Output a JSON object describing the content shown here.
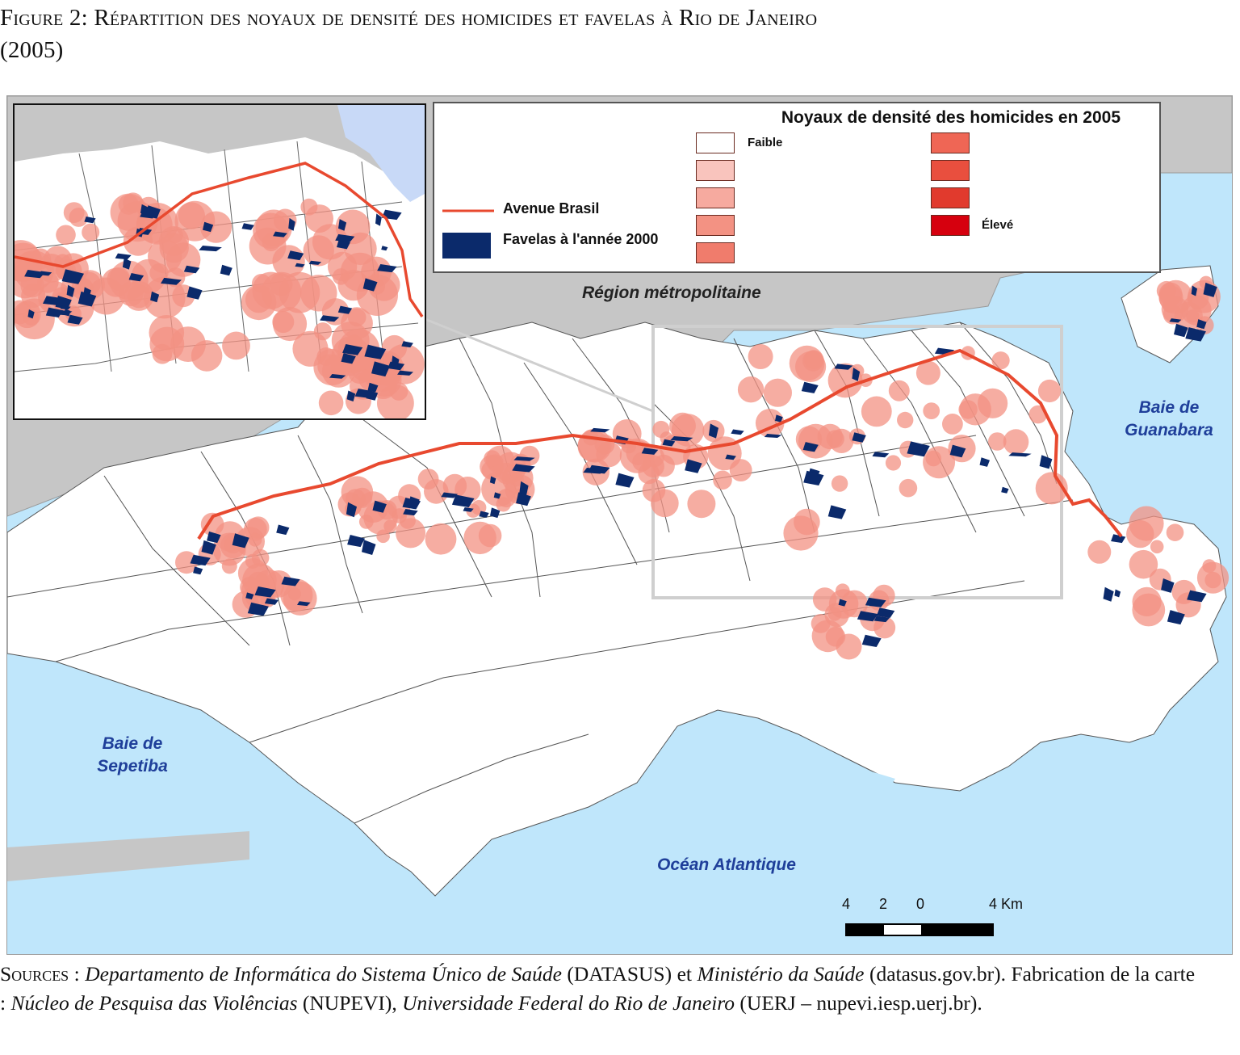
{
  "caption": {
    "figure": "Figure 2",
    "title": "Répartition des noyaux de densité des homicides et favelas à Rio de Janeiro",
    "year": "(2005)"
  },
  "legend": {
    "title": "Noyaux de densité des homicides en 2005",
    "low_label": "Faible",
    "high_label": "Élevé",
    "avenue_label": "Avenue Brasil",
    "favelas_label": "Favelas à l'année 2000",
    "density_colors": [
      "#ffffff",
      "#f9c4bd",
      "#f6aa9f",
      "#f39283",
      "#f07c6c",
      "#ef6655",
      "#e94f3e",
      "#e13a2d",
      "#d6000e"
    ],
    "avenue_color": "#e8492f",
    "favela_color": "#0b2a6b"
  },
  "map_labels": {
    "region": "Région métropolitaine",
    "guanabara_1": "Baie de",
    "guanabara_2": "Guanabara",
    "sepetiba_1": "Baie de",
    "sepetiba_2": "Sepetiba",
    "ocean": "Océan Atlantique"
  },
  "scale": {
    "labels": [
      "4",
      "2",
      "0",
      "4 Km"
    ]
  },
  "sources": {
    "prefix": "Sources :",
    "datasus_name": "Departamento de Informática do Sistema Único de Saúde",
    "datasus_abbr": "(DATASUS) et",
    "ministry": "Ministério da Saúde",
    "ministry_url": "(datasus.gov.br). Fabrication de la carte :",
    "nupevi_name": "Núcleo de Pesquisa das Violências",
    "nupevi_abbr": "(NUPEVI),",
    "uerj_name": "Universidade Federal do Rio de Janeiro",
    "uerj_abbr": "(UERJ – nupevi.iesp.uerj.br)."
  }
}
